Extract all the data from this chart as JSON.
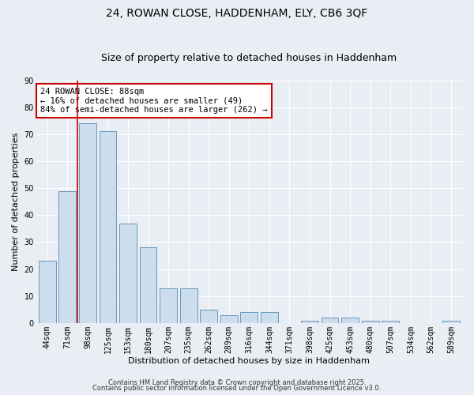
{
  "title1": "24, ROWAN CLOSE, HADDENHAM, ELY, CB6 3QF",
  "title2": "Size of property relative to detached houses in Haddenham",
  "xlabel": "Distribution of detached houses by size in Haddenham",
  "ylabel": "Number of detached properties",
  "categories": [
    "44sqm",
    "71sqm",
    "98sqm",
    "125sqm",
    "153sqm",
    "180sqm",
    "207sqm",
    "235sqm",
    "262sqm",
    "289sqm",
    "316sqm",
    "344sqm",
    "371sqm",
    "398sqm",
    "425sqm",
    "453sqm",
    "480sqm",
    "507sqm",
    "534sqm",
    "562sqm",
    "589sqm"
  ],
  "values": [
    23,
    49,
    74,
    71,
    37,
    28,
    13,
    13,
    5,
    3,
    4,
    4,
    0,
    1,
    2,
    2,
    1,
    1,
    0,
    0,
    1
  ],
  "bar_color": "#ccdded",
  "bar_edge_color": "#6699bb",
  "vline_x_index": 2,
  "vline_color": "#cc0000",
  "annotation_text": "24 ROWAN CLOSE: 88sqm\n← 16% of detached houses are smaller (49)\n84% of semi-detached houses are larger (262) →",
  "annotation_box_color": "#ffffff",
  "annotation_box_edge": "#cc0000",
  "ylim": [
    0,
    90
  ],
  "yticks": [
    0,
    10,
    20,
    30,
    40,
    50,
    60,
    70,
    80,
    90
  ],
  "footer1": "Contains HM Land Registry data © Crown copyright and database right 2025.",
  "footer2": "Contains public sector information licensed under the Open Government Licence v3.0.",
  "bg_color": "#e8eef4",
  "plot_bg_color": "#e8eef4",
  "grid_color": "#ffffff",
  "title_fontsize": 10,
  "subtitle_fontsize": 9,
  "axis_label_fontsize": 8,
  "tick_fontsize": 7,
  "footer_fontsize": 6,
  "annotation_fontsize": 7.5
}
